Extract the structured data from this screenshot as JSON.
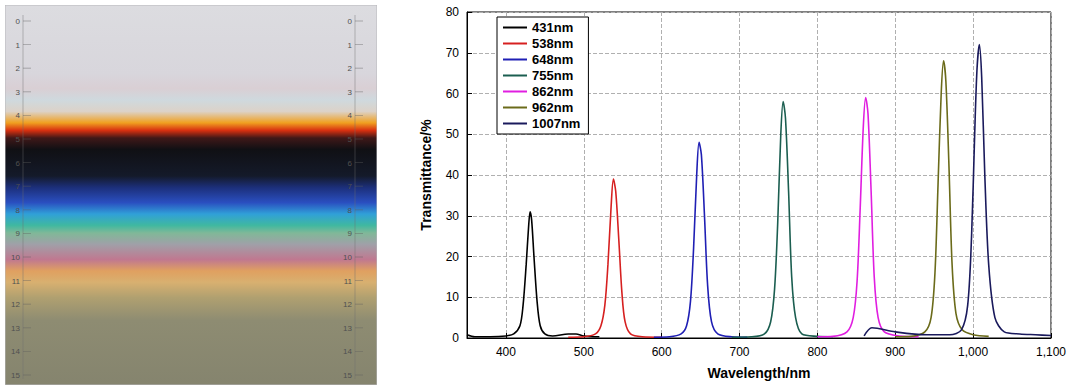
{
  "chart_data": {
    "type": "line",
    "x_label": "Wavelength/nm",
    "y_label": "Transmittance/%",
    "xlim": [
      350,
      1100
    ],
    "xticks": [
      400,
      500,
      600,
      700,
      800,
      900,
      1000,
      1100
    ],
    "ylim": [
      0,
      80
    ],
    "yticks": [
      0,
      10,
      20,
      30,
      40,
      50,
      60,
      70,
      80
    ],
    "grid": true,
    "legend": "upper left",
    "series": [
      {
        "name": "431nm",
        "color": "#000000",
        "x": [
          350,
          360,
          380,
          400,
          410,
          418,
          422,
          426,
          429,
          431,
          433,
          436,
          440,
          444,
          450,
          460,
          480,
          490,
          500,
          520
        ],
        "values": [
          0.8,
          0.3,
          0.3,
          0.5,
          1,
          3,
          8,
          18,
          27,
          31,
          29,
          20,
          9,
          3,
          1,
          0.5,
          1,
          1,
          0.5,
          0.3
        ]
      },
      {
        "name": "538nm",
        "color": "#d62020",
        "x": [
          480,
          500,
          515,
          522,
          527,
          531,
          535,
          538,
          541,
          545,
          549,
          553,
          560,
          575,
          600
        ],
        "values": [
          0.2,
          0.3,
          1,
          3,
          8,
          18,
          32,
          39,
          36,
          24,
          11,
          4,
          1,
          0.3,
          0.2
        ]
      },
      {
        "name": "648nm",
        "color": "#1f1fb4",
        "x": [
          590,
          610,
          625,
          632,
          637,
          641,
          645,
          648,
          651,
          655,
          659,
          664,
          672,
          690,
          710
        ],
        "values": [
          0.2,
          0.3,
          1,
          3,
          9,
          22,
          40,
          48,
          45,
          30,
          13,
          4,
          1,
          0.3,
          0.2
        ]
      },
      {
        "name": "755nm",
        "color": "#1b5e50",
        "x": [
          690,
          715,
          732,
          740,
          745,
          749,
          753,
          756,
          759,
          763,
          767,
          772,
          780,
          800,
          820
        ],
        "values": [
          0.2,
          0.3,
          1,
          4,
          12,
          28,
          50,
          58,
          54,
          36,
          15,
          5,
          1,
          0.4,
          0.3
        ]
      },
      {
        "name": "862nm",
        "color": "#e01ee0",
        "x": [
          800,
          820,
          838,
          846,
          851,
          855,
          859,
          862,
          865,
          869,
          873,
          878,
          886,
          905,
          930
        ],
        "values": [
          0.3,
          0.4,
          1.5,
          5,
          14,
          32,
          52,
          59,
          55,
          36,
          15,
          5,
          1.5,
          0.5,
          0.3
        ]
      },
      {
        "name": "962nm",
        "color": "#6b6b1a",
        "x": [
          900,
          920,
          938,
          946,
          951,
          955,
          959,
          962,
          965,
          969,
          973,
          978,
          986,
          1000,
          1020
        ],
        "values": [
          0.3,
          0.4,
          1.5,
          5,
          16,
          38,
          60,
          68,
          63,
          42,
          18,
          6,
          2,
          0.8,
          0.4
        ]
      },
      {
        "name": "1007nm",
        "color": "#1a1a5c",
        "x": [
          860,
          870,
          900,
          940,
          970,
          985,
          993,
          998,
          1002,
          1005,
          1008,
          1011,
          1015,
          1020,
          1028,
          1040,
          1060,
          1080,
          1100
        ],
        "values": [
          0.5,
          2.5,
          1.5,
          0.8,
          0.8,
          2,
          8,
          25,
          50,
          66,
          72,
          64,
          40,
          18,
          5,
          1.5,
          1,
          0.8,
          0.6
        ]
      }
    ]
  },
  "photo": {
    "ruler_labels": [
      0,
      1,
      2,
      3,
      4,
      5,
      6,
      7,
      8,
      9,
      10,
      11,
      12,
      13,
      14,
      15
    ]
  }
}
